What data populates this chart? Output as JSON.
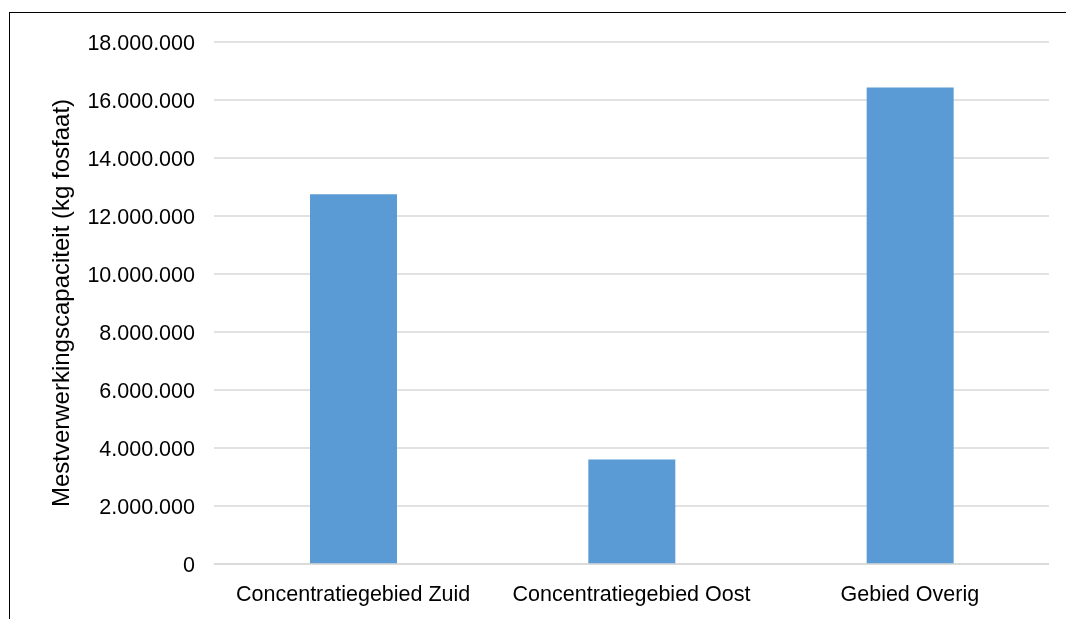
{
  "chart_data": {
    "type": "bar",
    "ylabel": "Mestverwerkingscapaciteit (kg fosfaat)",
    "categories": [
      "Concentratiegebied Zuid",
      "Concentratiegebied Oost",
      "Gebied Overig"
    ],
    "values": [
      12750000,
      3600000,
      16430000
    ],
    "color": "#5b9bd5",
    "ylim": [
      0,
      18000000
    ],
    "yticks": [
      0,
      {
        "value": 2000000,
        "label": "2.000.000"
      },
      {
        "value": 4000000,
        "label": "4.000.000"
      },
      {
        "value": 6000000,
        "label": "6.000.000"
      },
      {
        "value": 8000000,
        "label": "8.000.000"
      },
      {
        "value": 10000000,
        "label": "10.000.000"
      },
      {
        "value": 12000000,
        "label": "12.000.000"
      },
      {
        "value": 14000000,
        "label": "14.000.000"
      },
      {
        "value": 16000000,
        "label": "16.000.000"
      },
      {
        "value": 18000000,
        "label": "18.000.000"
      }
    ],
    "grid": "y"
  }
}
